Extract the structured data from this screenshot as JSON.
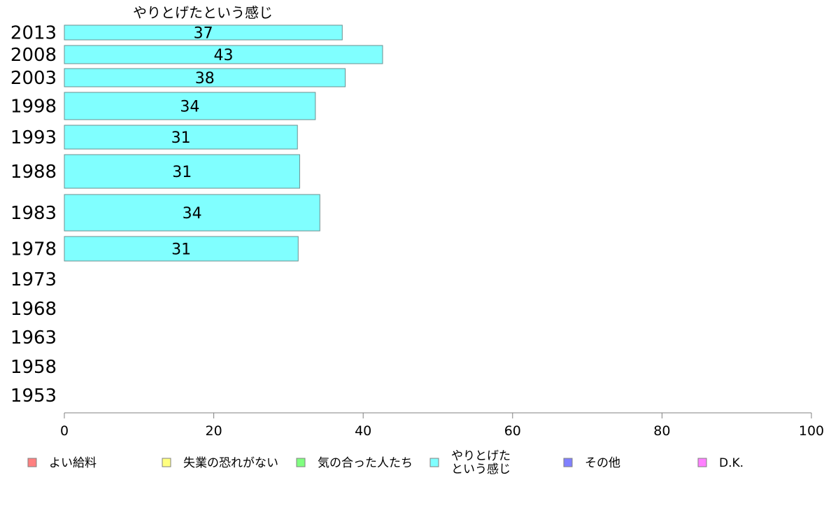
{
  "chart_data": {
    "type": "bar",
    "orientation": "horizontal",
    "title": "やりとげたという感じ",
    "categories": [
      "2013",
      "2008",
      "2003",
      "1998",
      "1993",
      "1988",
      "1983",
      "1978",
      "1973",
      "1968",
      "1963",
      "1958",
      "1953"
    ],
    "values": [
      37,
      43,
      38,
      34,
      31,
      31,
      34,
      31,
      null,
      null,
      null,
      null,
      null
    ],
    "bar_values": [
      37.2,
      42.6,
      37.6,
      33.6,
      31.2,
      31.5,
      34.2,
      31.3,
      null,
      null,
      null,
      null,
      null
    ],
    "bar_color": "#80ffff",
    "xlim": [
      0,
      100
    ],
    "xticks": [
      0,
      20,
      40,
      60,
      80,
      100
    ],
    "grid": false,
    "legend": {
      "placement": "bottom",
      "entries": [
        {
          "label": "よい給料",
          "color": "#ff8080"
        },
        {
          "label": "失業の恐れがない",
          "color": "#ffff80"
        },
        {
          "label": "気の合った人たち",
          "color": "#80ff80"
        },
        {
          "label": [
            "やりとげた",
            "という感じ"
          ],
          "color": "#80ffff"
        },
        {
          "label": "その他",
          "color": "#8080ff"
        },
        {
          "label": "D.K.",
          "color": "#ff80ff"
        }
      ]
    }
  }
}
